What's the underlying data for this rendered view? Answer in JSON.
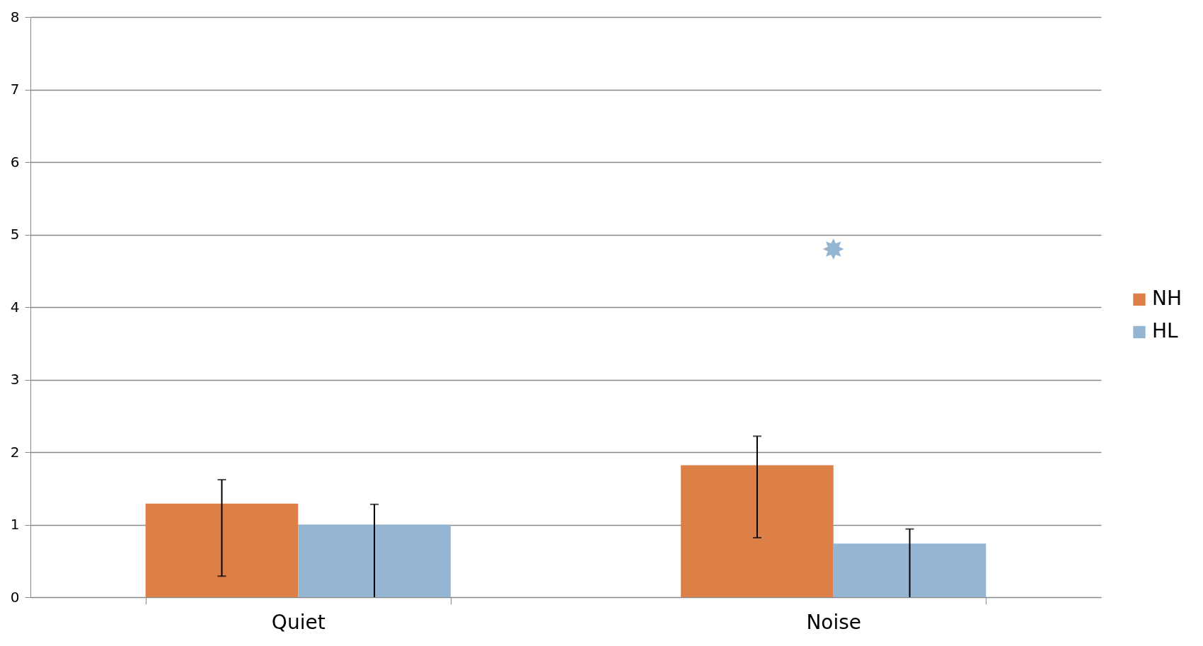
{
  "chart_data": {
    "type": "bar",
    "categories": [
      "Quiet",
      "Noise"
    ],
    "series": [
      {
        "name": "NH",
        "color": "#dd8047",
        "values": [
          1.29,
          1.82
        ],
        "errors": [
          [
            0.29,
            1.62
          ],
          [
            0.82,
            2.22
          ]
        ]
      },
      {
        "name": "HL",
        "color": "#94b6d2",
        "values": [
          1.0,
          0.74
        ],
        "errors": [
          [
            0,
            1.28
          ],
          [
            0,
            0.94
          ]
        ]
      },
      {
        "type": "scatter",
        "color": "#94b6d2",
        "marker": "star",
        "x": [
          "Noise"
        ],
        "values": [
          4.8
        ]
      }
    ],
    "ylim": [
      0,
      8
    ],
    "yticks": [
      0,
      1,
      2,
      3,
      4,
      5,
      6,
      7,
      8
    ],
    "grid": "y",
    "legend": "right"
  }
}
